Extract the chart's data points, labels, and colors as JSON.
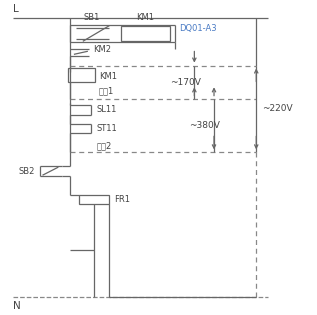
{
  "bg_color": "#ffffff",
  "line_color": "#666666",
  "dashed_color": "#888888",
  "label_color": "#4a7bc4",
  "text_color": "#444444",
  "L_label": "L",
  "N_label": "N",
  "SB1": "SB1",
  "KM1_top": "KM1",
  "DQ01": "DQ01-A3",
  "KM2": "KM2",
  "KM1_mid": "KM1",
  "xianxin1": "线芯1",
  "SL11": "SL11",
  "ST11": "ST11",
  "xianxin2": "线芯2",
  "SB2": "SB2",
  "FR1": "FR1",
  "v170": "~170V",
  "v380": "~380V",
  "v220": "~220V"
}
